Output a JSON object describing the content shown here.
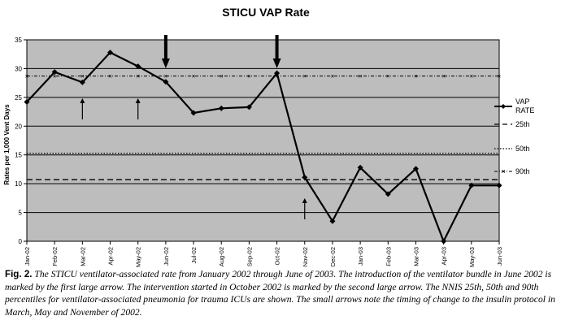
{
  "chart_data": {
    "type": "line",
    "title": "STICU VAP Rate",
    "ylabel": "Rates per 1,000 Vent Days",
    "xlabel": "",
    "ylim": [
      0,
      35
    ],
    "yticks": [
      0,
      5,
      10,
      15,
      20,
      25,
      30,
      35
    ],
    "grid": true,
    "legend_position": "right",
    "categories": [
      "Jan-02",
      "Feb-02",
      "Mar-02",
      "Apr-02",
      "May-02",
      "Jun-02",
      "Jul-02",
      "Aug-02",
      "Sep-02",
      "Oct-02",
      "Nov-02",
      "Dec-02",
      "Jan-03",
      "Feb-03",
      "Mar-03",
      "Apr-03",
      "May-03",
      "Jun-03"
    ],
    "series": [
      {
        "name": "VAP RATE",
        "values": [
          24.2,
          29.4,
          27.6,
          32.8,
          30.4,
          27.7,
          22.3,
          23.1,
          23.3,
          29.2,
          11.1,
          3.5,
          12.8,
          8.2,
          12.6,
          0,
          9.7,
          9.7
        ],
        "color": "#000000",
        "style": "solid-diamond"
      }
    ],
    "reference_lines": [
      {
        "name": "25th",
        "value": 10.7,
        "style": "dash"
      },
      {
        "name": "50th",
        "value": 15.3,
        "style": "dot"
      },
      {
        "name": "90th",
        "value": 28.7,
        "style": "dash-x"
      }
    ],
    "large_arrows": [
      "Jun-02",
      "Oct-02"
    ],
    "small_arrows": [
      "Mar-02",
      "May-02",
      "Nov-02"
    ],
    "plot_background": "#bdbdbd"
  },
  "legend": {
    "vap_line1": "VAP",
    "vap_line2": "RATE",
    "p25": "25th",
    "p50": "50th",
    "p90": "90th"
  },
  "caption": {
    "fig_label": "Fig. 2.",
    "text": "The STICU ventilator-associated rate from January 2002 through June of 2003. The introduction of the ventilator bundle in June 2002 is marked by the first large arrow. The intervention started in October 2002 is marked by the second large arrow. The NNIS 25th, 50th and 90th percentiles for ventilator-associated pneumonia for trauma ICUs are shown. The small arrows note the timing of change to the insulin protocol in March, May and November of 2002."
  }
}
